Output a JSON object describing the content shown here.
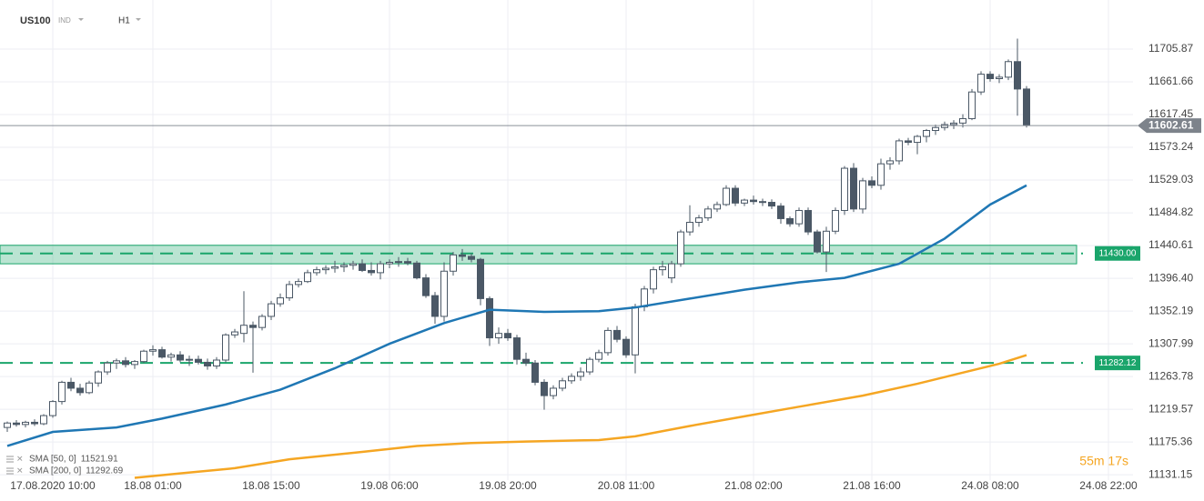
{
  "header": {
    "symbol": "US100",
    "kind": "IND",
    "timeframe": "H1"
  },
  "chart_data": {
    "type": "candlestick",
    "categories": [
      null,
      null,
      null,
      null,
      null,
      "17.08.2020 10:00",
      null,
      null,
      null,
      null,
      null,
      null,
      null,
      null,
      null,
      null,
      "18.08 01:00",
      null,
      null,
      null,
      null,
      null,
      null,
      null,
      null,
      null,
      null,
      null,
      null,
      "18.08 15:00",
      null,
      null,
      null,
      null,
      null,
      null,
      null,
      null,
      null,
      null,
      null,
      null,
      "19.08 06:00",
      null,
      null,
      null,
      null,
      null,
      null,
      null,
      null,
      null,
      null,
      null,
      null,
      "19.08 20:00",
      null,
      null,
      null,
      null,
      null,
      null,
      null,
      null,
      null,
      null,
      null,
      null,
      "20.08 11:00",
      null,
      null,
      null,
      null,
      null,
      null,
      null,
      null,
      null,
      null,
      null,
      null,
      null,
      "21.08 02:00",
      null,
      null,
      null,
      null,
      null,
      null,
      null,
      null,
      null,
      null,
      null,
      null,
      "21.08 16:00",
      null,
      null,
      null,
      null,
      null,
      null,
      null,
      null,
      null,
      null,
      null,
      null,
      "24.08 08:00",
      null,
      null,
      null,
      null,
      null,
      null,
      null,
      null,
      null,
      null,
      null,
      null,
      "24.08 22:00"
    ],
    "ohlc": [
      [
        11195,
        11203,
        11189,
        11201
      ],
      [
        11201,
        11205,
        11196,
        11199
      ],
      [
        11199,
        11204,
        11195,
        11202
      ],
      [
        11202,
        11206,
        11197,
        11200
      ],
      [
        11200,
        11213,
        11198,
        11211
      ],
      [
        11211,
        11232,
        11208,
        11230
      ],
      [
        11230,
        11258,
        11226,
        11256
      ],
      [
        11256,
        11262,
        11244,
        11248
      ],
      [
        11248,
        11254,
        11238,
        11242
      ],
      [
        11242,
        11258,
        11240,
        11255
      ],
      [
        11255,
        11272,
        11250,
        11270
      ],
      [
        11270,
        11285,
        11266,
        11282
      ],
      [
        11282,
        11288,
        11274,
        11285
      ],
      [
        11285,
        11290,
        11276,
        11280
      ],
      [
        11280,
        11286,
        11274,
        11284
      ],
      [
        11284,
        11300,
        11282,
        11298
      ],
      [
        11298,
        11306,
        11292,
        11300
      ],
      [
        11300,
        11304,
        11288,
        11290
      ],
      [
        11290,
        11296,
        11284,
        11293
      ],
      [
        11293,
        11298,
        11283,
        11286
      ],
      [
        11286,
        11292,
        11278,
        11287
      ],
      [
        11287,
        11292,
        11280,
        11283
      ],
      [
        11283,
        11288,
        11273,
        11278
      ],
      [
        11278,
        11290,
        11274,
        11286
      ],
      [
        11286,
        11322,
        11283,
        11320
      ],
      [
        11320,
        11328,
        11316,
        11324
      ],
      [
        11322,
        11379,
        11310,
        11333
      ],
      [
        11333,
        11338,
        11269,
        11330
      ],
      [
        11330,
        11348,
        11326,
        11345
      ],
      [
        11345,
        11366,
        11340,
        11362
      ],
      [
        11362,
        11376,
        11358,
        11370
      ],
      [
        11370,
        11393,
        11366,
        11388
      ],
      [
        11388,
        11396,
        11384,
        11392
      ],
      [
        11392,
        11408,
        11390,
        11404
      ],
      [
        11404,
        11412,
        11400,
        11408
      ],
      [
        11408,
        11414,
        11402,
        11410
      ],
      [
        11410,
        11420,
        11404,
        11412
      ],
      [
        11412,
        11418,
        11405,
        11414
      ],
      [
        11414,
        11420,
        11408,
        11416
      ],
      [
        11416,
        11422,
        11405,
        11407
      ],
      [
        11407,
        11418,
        11400,
        11404
      ],
      [
        11404,
        11420,
        11395,
        11416
      ],
      [
        11416,
        11422,
        11410,
        11418
      ],
      [
        11418,
        11425,
        11412,
        11419
      ],
      [
        11419,
        11424,
        11414,
        11417
      ],
      [
        11417,
        11420,
        11395,
        11397
      ],
      [
        11397,
        11402,
        11370,
        11373
      ],
      [
        11373,
        11378,
        11335,
        11345
      ],
      [
        11345,
        11418,
        11338,
        11406
      ],
      [
        11406,
        11432,
        11400,
        11428
      ],
      [
        11428,
        11436,
        11420,
        11426
      ],
      [
        11426,
        11430,
        11418,
        11422
      ],
      [
        11422,
        11424,
        11360,
        11369
      ],
      [
        11369,
        11372,
        11305,
        11316
      ],
      [
        11316,
        11330,
        11308,
        11322
      ],
      [
        11322,
        11328,
        11312,
        11316
      ],
      [
        11316,
        11320,
        11280,
        11287
      ],
      [
        11287,
        11296,
        11278,
        11282
      ],
      [
        11282,
        11286,
        11252,
        11256
      ],
      [
        11256,
        11260,
        11219,
        11238
      ],
      [
        11238,
        11252,
        11233,
        11248
      ],
      [
        11248,
        11262,
        11244,
        11258
      ],
      [
        11258,
        11268,
        11254,
        11264
      ],
      [
        11264,
        11276,
        11258,
        11270
      ],
      [
        11270,
        11290,
        11266,
        11287
      ],
      [
        11287,
        11300,
        11283,
        11296
      ],
      [
        11296,
        11330,
        11292,
        11326
      ],
      [
        11326,
        11332,
        11310,
        11314
      ],
      [
        11314,
        11318,
        11289,
        11293
      ],
      [
        11293,
        11362,
        11268,
        11358
      ],
      [
        11358,
        11386,
        11352,
        11382
      ],
      [
        11382,
        11412,
        11376,
        11408
      ],
      [
        11408,
        11420,
        11400,
        11412
      ],
      [
        11397,
        11420,
        11390,
        11416
      ],
      [
        11416,
        11462,
        11412,
        11459
      ],
      [
        11459,
        11495,
        11454,
        11472
      ],
      [
        11472,
        11482,
        11466,
        11478
      ],
      [
        11478,
        11494,
        11474,
        11490
      ],
      [
        11490,
        11500,
        11486,
        11496
      ],
      [
        11496,
        11522,
        11494,
        11518
      ],
      [
        11518,
        11522,
        11494,
        11498
      ],
      [
        11498,
        11504,
        11494,
        11502
      ],
      [
        11502,
        11508,
        11496,
        11500
      ],
      [
        11500,
        11504,
        11494,
        11499
      ],
      [
        11499,
        11503,
        11490,
        11494
      ],
      [
        11494,
        11498,
        11470,
        11477
      ],
      [
        11477,
        11480,
        11466,
        11470
      ],
      [
        11470,
        11492,
        11466,
        11488
      ],
      [
        11488,
        11492,
        11455,
        11459
      ],
      [
        11459,
        11462,
        11430,
        11432
      ],
      [
        11432,
        11466,
        11405,
        11460
      ],
      [
        11460,
        11492,
        11456,
        11488
      ],
      [
        11488,
        11548,
        11482,
        11545
      ],
      [
        11545,
        11552,
        11486,
        11490
      ],
      [
        11490,
        11532,
        11484,
        11528
      ],
      [
        11528,
        11534,
        11518,
        11522
      ],
      [
        11522,
        11558,
        11516,
        11551
      ],
      [
        11551,
        11560,
        11543,
        11555
      ],
      [
        11555,
        11585,
        11550,
        11582
      ],
      [
        11582,
        11586,
        11576,
        11580
      ],
      [
        11580,
        11590,
        11564,
        11588
      ],
      [
        11588,
        11598,
        11580,
        11596
      ],
      [
        11596,
        11604,
        11590,
        11600
      ],
      [
        11600,
        11608,
        11596,
        11604
      ],
      [
        11604,
        11610,
        11598,
        11606
      ],
      [
        11606,
        11618,
        11600,
        11612
      ],
      [
        11612,
        11652,
        11610,
        11648
      ],
      [
        11648,
        11676,
        11644,
        11672
      ],
      [
        11672,
        11676,
        11662,
        11666
      ],
      [
        11666,
        11672,
        11660,
        11668
      ],
      [
        11668,
        11692,
        11664,
        11689
      ],
      [
        11689,
        11720,
        11616,
        11652
      ],
      [
        11652,
        11656,
        11600,
        11603
      ],
      null,
      null,
      null,
      null,
      null,
      null,
      null,
      null,
      null
    ],
    "up_color": "#ffffff",
    "down_color": "#4b5866",
    "ylim": [
      11109.2,
      11772.2
    ],
    "yticks": [
      11705.87,
      11661.66,
      11617.45,
      11573.24,
      11529.03,
      11484.82,
      11440.61,
      {
        "value": 11396.4,
        "label": "11396.40"
      },
      11352.19,
      11307.99,
      11263.78,
      11219.57,
      11175.36,
      11131.15
    ],
    "grid": true,
    "sma": [
      {
        "name": "SMA [50, 0]",
        "last": 11521.91,
        "color": "#1f77b4",
        "x": [
          0,
          5,
          12,
          17,
          24,
          30,
          36,
          42,
          48,
          53,
          59,
          65,
          69,
          75,
          81,
          87,
          92,
          98,
          103,
          108,
          112
        ],
        "values": [
          11170,
          11189,
          11195,
          11207,
          11226,
          11246,
          11275,
          11308,
          11336,
          11354,
          11351,
          11352,
          11357,
          11369,
          11381,
          11391,
          11397,
          11416,
          11450,
          11496,
          11521.91
        ]
      },
      {
        "name": "SMA [200, 0]",
        "last": 11292.69,
        "color": "#f5a623",
        "x": [
          14,
          19,
          25,
          31,
          39,
          45,
          51,
          57,
          65,
          69,
          75,
          81,
          87,
          94,
          100,
          105,
          109,
          112
        ],
        "values": [
          11127,
          11133,
          11140,
          11152,
          11162,
          11170,
          11174,
          11176,
          11178,
          11183,
          11197,
          11210,
          11223,
          11238,
          11254,
          11269,
          11281,
          11292.69
        ]
      }
    ],
    "zone": [
      11416,
      11441
    ],
    "levels": [
      {
        "value": 11430,
        "label": "11430.00"
      },
      {
        "value": 11282.12,
        "label": "11282.12"
      }
    ],
    "level_color": "#1aa56b",
    "last_price": 11602.61,
    "countdown": "55m 17s"
  }
}
